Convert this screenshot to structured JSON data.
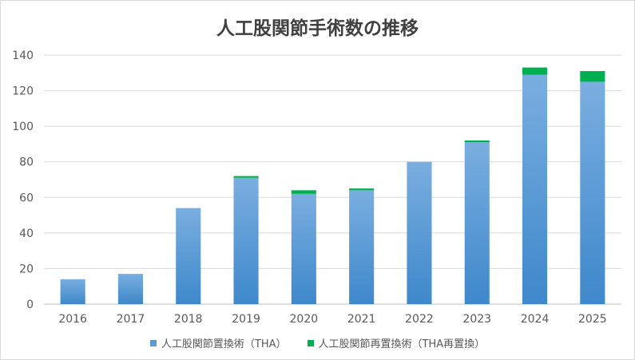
{
  "chart_data": {
    "type": "bar",
    "stacked": true,
    "title": "人工股関節手術数の推移",
    "categories": [
      "2016",
      "2017",
      "2018",
      "2019",
      "2020",
      "2021",
      "2022",
      "2023",
      "2024",
      "2025"
    ],
    "series": [
      {
        "name": "人工股関節置換術（THA）",
        "color": "#5b9bd5",
        "values": [
          14,
          17,
          54,
          71,
          62,
          64,
          80,
          91,
          129,
          125
        ]
      },
      {
        "name": "人工股関節再置換術（THA再置換）",
        "color": "#00b050",
        "values": [
          0,
          0,
          0,
          1,
          2,
          1,
          0,
          1,
          4,
          6
        ]
      }
    ],
    "ylim": [
      0,
      140
    ],
    "yticks": [
      0,
      20,
      40,
      60,
      80,
      100,
      120,
      140
    ],
    "grid": true,
    "legend_position": "bottom"
  }
}
